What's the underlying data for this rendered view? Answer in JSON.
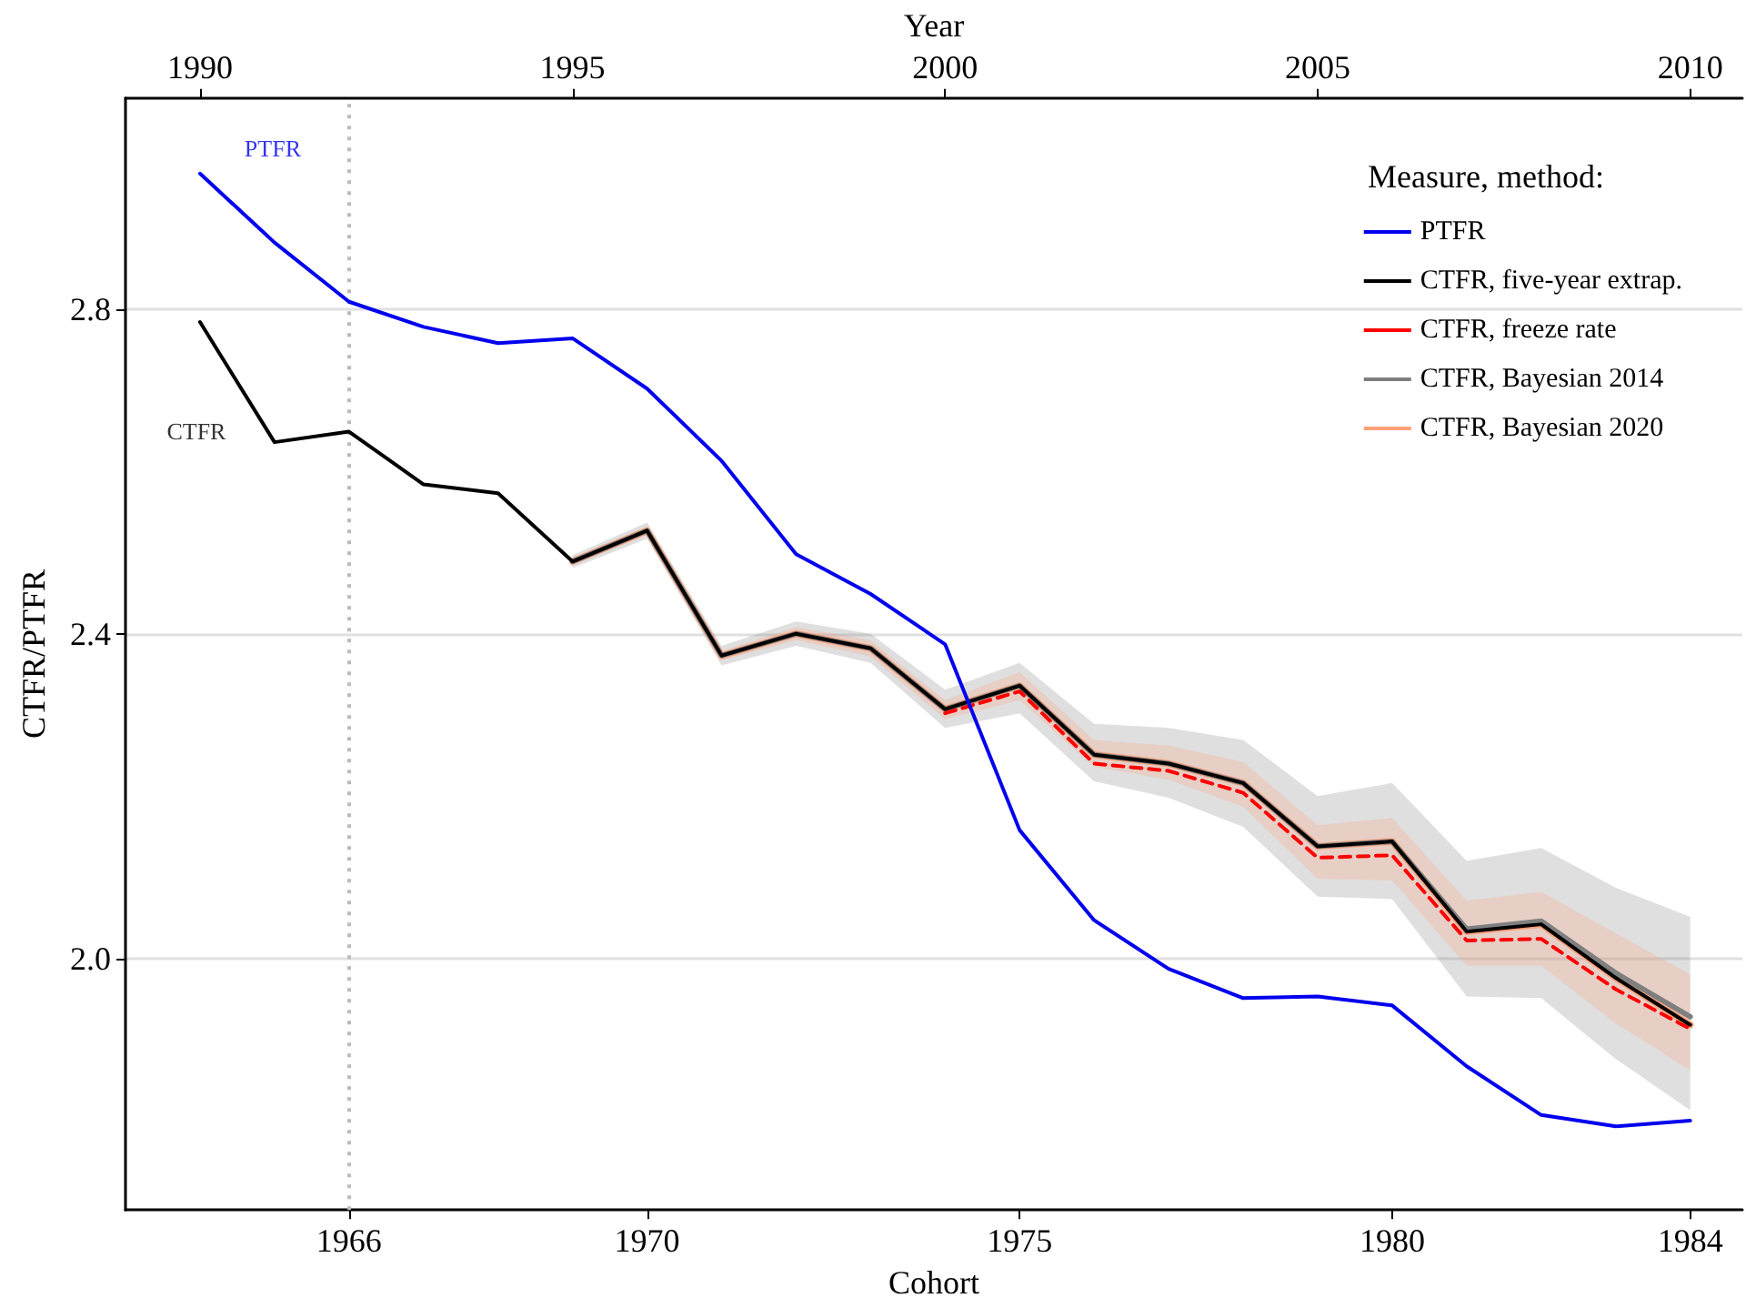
{
  "chart_data": {
    "type": "line",
    "xlabel": "Cohort",
    "x2label": "Year",
    "ylabel": "CTFR/PTFR",
    "legend_title": "Measure, method:",
    "x": [
      1964,
      1965,
      1966,
      1967,
      1968,
      1969,
      1970,
      1971,
      1972,
      1973,
      1974,
      1975,
      1976,
      1977,
      1978,
      1979,
      1980,
      1981,
      1982,
      1983,
      1984
    ],
    "series": [
      {
        "name": "PTFR",
        "color": "#0000ee",
        "values": [
          2.967,
          2.882,
          2.809,
          2.778,
          2.758,
          2.764,
          2.702,
          2.613,
          2.498,
          2.449,
          2.387,
          2.158,
          2.047,
          1.987,
          1.951,
          1.953,
          1.942,
          1.867,
          1.807,
          1.793,
          1.8
        ]
      },
      {
        "name": "CTFR, five-year extrap.",
        "color": "#000000",
        "values": [
          2.784,
          2.636,
          2.649,
          2.584,
          2.573,
          2.489,
          2.527,
          2.373,
          2.4,
          2.382,
          2.307,
          2.336,
          2.251,
          2.24,
          2.216,
          2.138,
          2.144,
          2.033,
          2.042,
          1.976,
          1.918
        ]
      },
      {
        "name": "CTFR, freeze rate",
        "color": "#ff0000",
        "line_style": "dashed",
        "values": [
          null,
          null,
          null,
          null,
          null,
          null,
          null,
          null,
          null,
          null,
          2.302,
          2.329,
          2.24,
          2.231,
          2.204,
          2.124,
          2.127,
          2.022,
          2.024,
          1.962,
          1.913
        ]
      },
      {
        "name": "CTFR, Bayesian 2014",
        "color": "#7f7f7f",
        "values": [
          null,
          null,
          null,
          null,
          null,
          2.489,
          2.527,
          2.373,
          2.4,
          2.382,
          2.307,
          2.336,
          2.251,
          2.24,
          2.216,
          2.138,
          2.144,
          2.036,
          2.046,
          1.982,
          1.928
        ],
        "lower": [
          null,
          null,
          null,
          null,
          null,
          2.481,
          2.517,
          2.361,
          2.385,
          2.364,
          2.284,
          2.302,
          2.218,
          2.198,
          2.162,
          2.076,
          2.073,
          1.953,
          1.951,
          1.876,
          1.813
        ],
        "upper": [
          null,
          null,
          null,
          null,
          null,
          2.497,
          2.537,
          2.385,
          2.415,
          2.4,
          2.331,
          2.364,
          2.289,
          2.284,
          2.269,
          2.2,
          2.216,
          2.12,
          2.136,
          2.087,
          2.051
        ]
      },
      {
        "name": "CTFR, Bayesian 2020",
        "color": "#ffa07a",
        "values": [
          null,
          null,
          null,
          null,
          null,
          2.489,
          2.527,
          2.373,
          2.4,
          2.382,
          2.307,
          2.336,
          2.251,
          2.24,
          2.216,
          2.138,
          2.144,
          2.033,
          2.042,
          1.976,
          1.918
        ],
        "lower": [
          null,
          null,
          null,
          null,
          null,
          2.485,
          2.522,
          2.367,
          2.392,
          2.372,
          2.295,
          2.318,
          2.236,
          2.22,
          2.187,
          2.098,
          2.096,
          1.991,
          1.991,
          1.92,
          1.862
        ],
        "upper": [
          null,
          null,
          null,
          null,
          null,
          2.493,
          2.532,
          2.379,
          2.408,
          2.392,
          2.318,
          2.353,
          2.269,
          2.262,
          2.242,
          2.164,
          2.173,
          2.071,
          2.082,
          2.031,
          1.98
        ]
      }
    ],
    "annotations": [
      "PTFR",
      "CTFR"
    ],
    "ref_lines": [
      {
        "axis": "x",
        "value": 1966,
        "color": "#bbbbbb",
        "line_style": "dotted"
      }
    ],
    "xlim": [
      1963.0,
      1984.7
    ],
    "xticks": [
      1966,
      1970,
      1975,
      1980,
      1984
    ],
    "x2lim": [
      1989.0,
      2010.7
    ],
    "x2ticks": [
      1990,
      1995,
      2000,
      2005,
      2010
    ],
    "ylim": [
      1.69,
      3.06
    ],
    "yticks": [
      {
        "value": 2.0,
        "label": "2.0"
      },
      {
        "value": 2.4,
        "label": "2.4"
      },
      {
        "value": 2.8,
        "label": "2.8"
      }
    ],
    "grid": "y",
    "legend": "top right",
    "marker": "none"
  }
}
